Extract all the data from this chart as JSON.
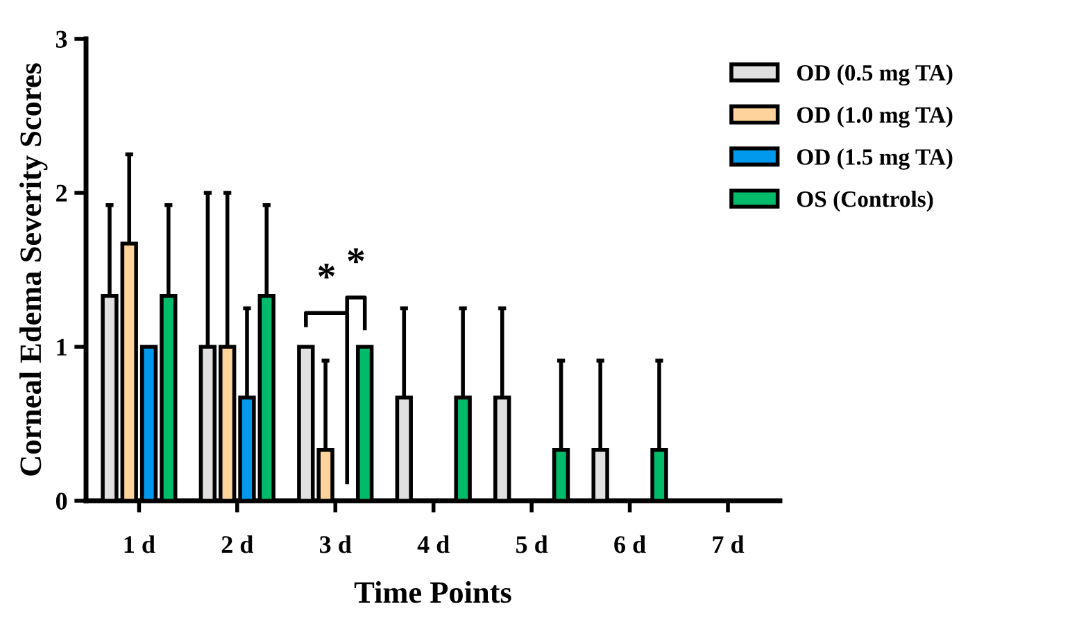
{
  "chart_data": {
    "type": "bar",
    "xlabel": "Time Points",
    "ylabel": "Corneal Edema Severity Scores",
    "categories": [
      "1 d",
      "2 d",
      "3 d",
      "4 d",
      "5 d",
      "6 d",
      "7 d"
    ],
    "series": [
      {
        "name": "OD (0.5 mg TA)",
        "color": "#e0e0e0",
        "values": [
          1.33,
          1.0,
          1.0,
          0.67,
          0.67,
          0.33,
          0
        ],
        "errors": [
          [
            1.33,
            1.92
          ],
          [
            1.0,
            2.0
          ],
          null,
          [
            0.67,
            1.25
          ],
          [
            0.67,
            1.25
          ],
          [
            0.33,
            0.91
          ],
          null
        ]
      },
      {
        "name": "OD (1.0 mg TA)",
        "color": "#ffd39b",
        "values": [
          1.67,
          1.0,
          0.33,
          0,
          0,
          0,
          0
        ],
        "errors": [
          [
            1.67,
            2.25
          ],
          [
            1.0,
            2.0
          ],
          [
            0.33,
            0.91
          ],
          null,
          null,
          null,
          null
        ]
      },
      {
        "name": "OD (1.5 mg TA)",
        "color": "#0099ee",
        "values": [
          1.0,
          0.67,
          0,
          0,
          0,
          0,
          0
        ],
        "errors": [
          null,
          [
            0.67,
            1.25
          ],
          null,
          null,
          null,
          null,
          null
        ]
      },
      {
        "name": "OS (Controls)",
        "color": "#00bb6a",
        "values": [
          1.33,
          1.33,
          1.0,
          0.67,
          0.33,
          0.33,
          0
        ],
        "errors": [
          [
            1.33,
            1.92
          ],
          [
            1.33,
            1.92
          ],
          null,
          [
            0.67,
            1.25
          ],
          [
            0.33,
            0.91
          ],
          [
            0.33,
            0.91
          ],
          null
        ]
      }
    ],
    "ylim": [
      0,
      3
    ],
    "yticks": [
      0,
      1,
      2,
      3
    ],
    "legend": "top right",
    "grid": false,
    "annotations": [
      "*",
      "*"
    ]
  }
}
